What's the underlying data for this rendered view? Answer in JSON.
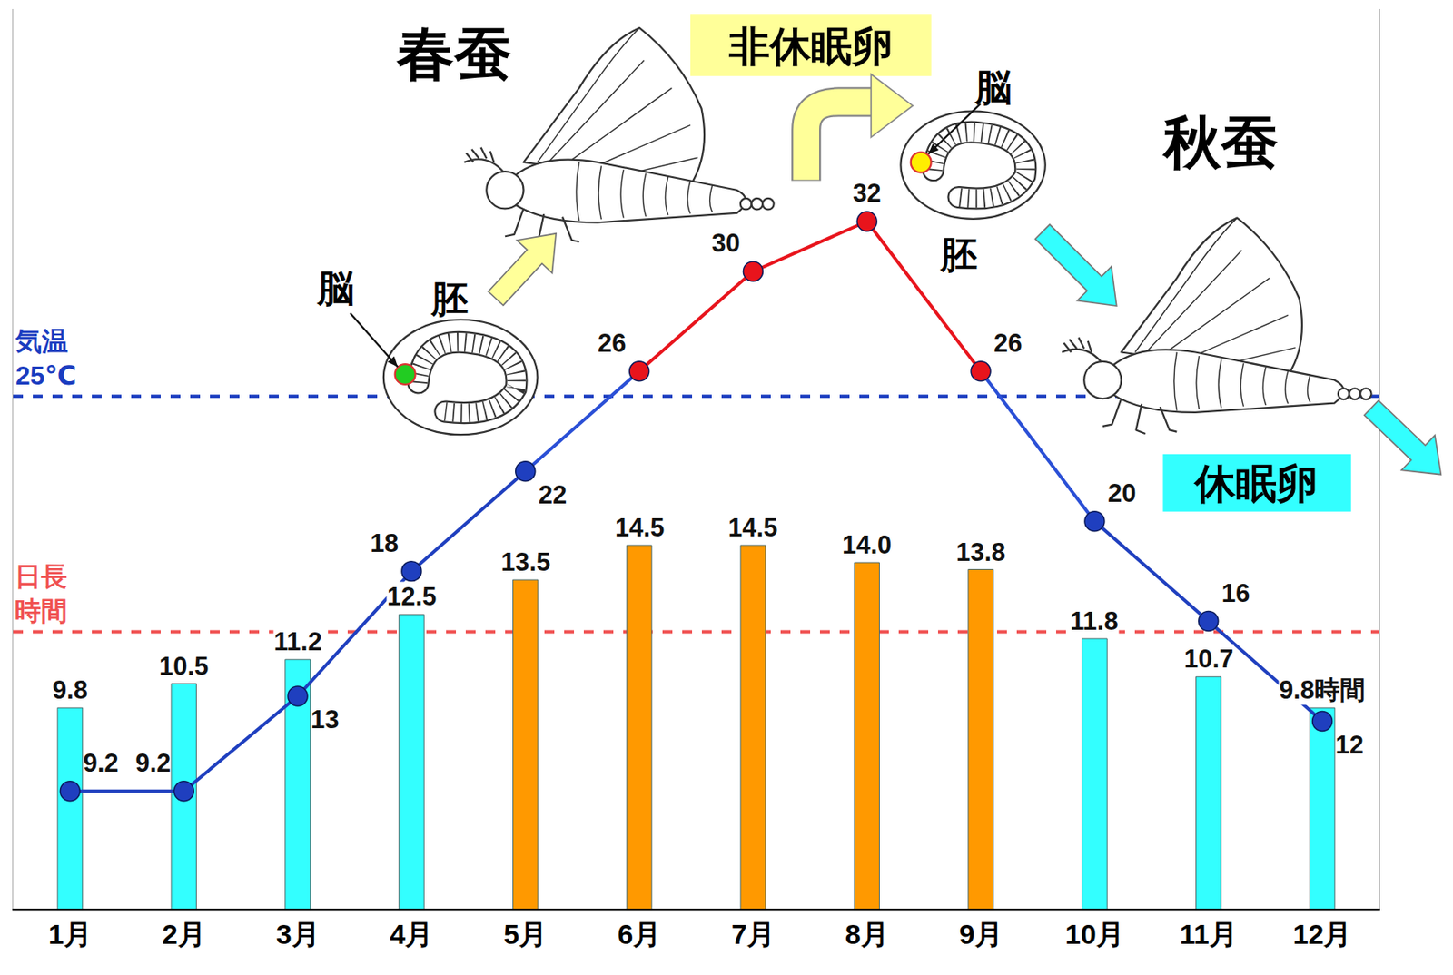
{
  "chart_data": {
    "type": "bar",
    "categories": [
      "1月",
      "2月",
      "3月",
      "4月",
      "5月",
      "6月",
      "7月",
      "8月",
      "9月",
      "10月",
      "11月",
      "12月"
    ],
    "tick_labels": "x",
    "data_labels": true,
    "grid": false,
    "ylim": [
      4,
      30
    ],
    "yticks": [],
    "y2lim": [
      4.5,
      40.5
    ],
    "y2ticks": [],
    "series": [
      {
        "type": "bar",
        "colors": [
          "#33ffff",
          "#33ffff",
          "#33ffff",
          "#33ffff",
          "#ff9900",
          "#ff9900",
          "#ff9900",
          "#ff9900",
          "#ff9900",
          "#33ffff",
          "#33ffff",
          "#33ffff"
        ],
        "values": [
          9.8,
          10.5,
          11.2,
          12.5,
          13.5,
          14.5,
          14.5,
          14.0,
          13.8,
          11.8,
          10.7,
          9.8
        ],
        "value_labels": [
          "9.8",
          "10.5",
          "11.2",
          "12.5",
          "13.5",
          "14.5",
          "14.5",
          "14.0",
          "13.8",
          "11.8",
          "10.7",
          "9.8時間"
        ]
      },
      {
        "type": "line",
        "axis": "y2",
        "color": "#2a4fd6",
        "marker": "circle",
        "line_style": "solid",
        "colors": [
          "#1f3fbf",
          "#1f3fbf",
          "#1f3fbf",
          "#1f3fbf",
          "#1f3fbf",
          "#e8141c",
          "#e8141c",
          "#e8141c",
          "#e8141c",
          "#1f3fbf",
          "#1f3fbf",
          "#1f3fbf"
        ],
        "values": [
          9.2,
          9.2,
          13,
          18,
          22,
          26,
          30,
          32,
          26,
          20,
          16,
          12
        ]
      }
    ],
    "thresholds": [
      {
        "axis": "y2",
        "value": 25,
        "label": [
          "気温",
          "25℃"
        ],
        "color": "#1a3cc0",
        "line_style": "dashed"
      },
      {
        "axis": "y",
        "value": 12,
        "label": [
          "日長",
          "時間"
        ],
        "color": "#f05050",
        "line_style": "dashed"
      }
    ]
  },
  "diagram": {
    "spring": {
      "title": "春蚕",
      "egg": "非休眠卵",
      "brain": "脳",
      "embryo": "胚"
    },
    "autumn": {
      "title": "秋蚕",
      "egg": "休眠卵",
      "brain": "脳",
      "embryo": "胚"
    }
  }
}
